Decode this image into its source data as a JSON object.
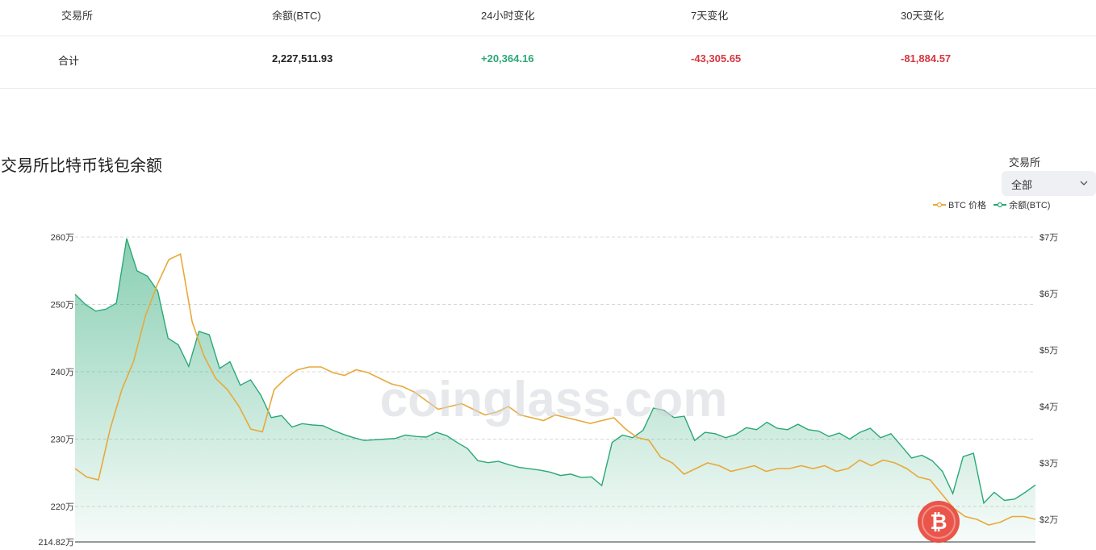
{
  "summary_table": {
    "headers": [
      "交易所",
      "余额(BTC)",
      "24小时变化",
      "7天变化",
      "30天变化"
    ],
    "total_row": {
      "label": "合计",
      "balance": "2,227,511.93",
      "change_24h": "+20,364.16",
      "change_7d": "-43,305.65",
      "change_30d": "-81,884.57"
    }
  },
  "chart_header": {
    "title": "交易所比特币钱包余额",
    "exchange_label": "交易所",
    "exchange_selected": "全部"
  },
  "watermark": "coinglass.com",
  "colors": {
    "balance": "#2aa876",
    "price": "#e8a93a",
    "positive": "#2aa876",
    "negative": "#d7373f"
  },
  "icons": {
    "dropdown": "chevron-down-icon",
    "logo": "bitcoin-logo-icon"
  },
  "chart_data": {
    "type": "area",
    "title": "交易所比特币钱包余额",
    "legend": [
      "BTC 价格",
      "余额(BTC)"
    ],
    "legend_position": "top-right",
    "grid": true,
    "y_left": {
      "ticks": [
        "260万",
        "250万",
        "240万",
        "230万",
        "220万"
      ],
      "min_label": "214.82万",
      "range": [
        214.82,
        262
      ]
    },
    "y_right": {
      "ticks": [
        "$7万",
        "$6万",
        "$5万",
        "$4万",
        "$3万",
        "$2万"
      ],
      "range": [
        1.6,
        7.1
      ]
    },
    "series": [
      {
        "name": "余额(BTC)",
        "axis": "left",
        "unit": "万",
        "values": [
          251.5,
          250,
          249,
          249.3,
          250.2,
          259.8,
          255,
          254.2,
          252,
          245,
          244,
          240.8,
          246,
          245.5,
          240.5,
          241.5,
          238,
          238.8,
          236.5,
          233.2,
          233.5,
          231.8,
          232.3,
          232.1,
          232,
          231.3,
          230.7,
          230.2,
          229.8,
          229.9,
          230,
          230.1,
          230.6,
          230.4,
          230.3,
          231,
          230.5,
          229.5,
          228.6,
          226.8,
          226.5,
          226.7,
          226.2,
          225.8,
          225.6,
          225.4,
          225.1,
          224.6,
          224.8,
          224.3,
          224.4,
          223.1,
          229.5,
          230.6,
          230.2,
          231.3,
          234.6,
          234.3,
          233.2,
          233.4,
          229.8,
          231,
          230.8,
          230.2,
          230.7,
          231.7,
          231.4,
          232.5,
          231.6,
          231.4,
          232.2,
          231.4,
          231.2,
          230.4,
          230.9,
          230,
          231,
          231.6,
          230.2,
          230.8,
          229,
          227.2,
          227.6,
          226.8,
          225.2,
          221.9,
          227.4,
          227.9,
          220.5,
          222.1,
          220.9,
          221.1,
          222.1,
          223.2
        ]
      },
      {
        "name": "BTC 价格",
        "axis": "right",
        "unit": "$万",
        "values": [
          2.9,
          2.75,
          2.7,
          3.6,
          4.3,
          4.8,
          5.6,
          6.15,
          6.6,
          6.7,
          5.5,
          4.9,
          4.5,
          4.3,
          4,
          3.6,
          3.55,
          4.3,
          4.5,
          4.65,
          4.7,
          4.7,
          4.6,
          4.55,
          4.65,
          4.6,
          4.5,
          4.4,
          4.35,
          4.25,
          4.1,
          3.95,
          4,
          4.05,
          3.95,
          3.85,
          3.9,
          4,
          3.85,
          3.8,
          3.75,
          3.85,
          3.8,
          3.75,
          3.7,
          3.75,
          3.8,
          3.6,
          3.45,
          3.4,
          3.1,
          3,
          2.8,
          2.9,
          3,
          2.95,
          2.85,
          2.9,
          2.95,
          2.85,
          2.9,
          2.9,
          2.95,
          2.9,
          2.95,
          2.85,
          2.9,
          3.05,
          2.95,
          3.05,
          3,
          2.9,
          2.75,
          2.7,
          2.45,
          2.2,
          2.05,
          2,
          1.9,
          1.95,
          2.05,
          2.05,
          2
        ]
      }
    ]
  }
}
